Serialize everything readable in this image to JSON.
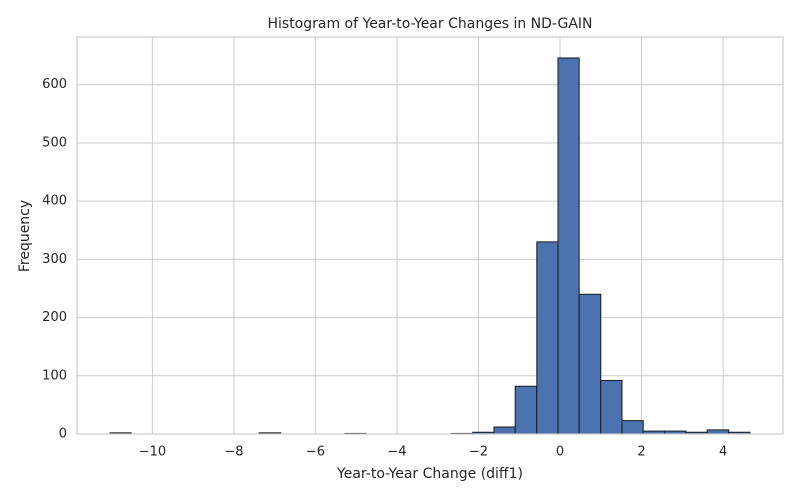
{
  "chart_data": {
    "type": "histogram",
    "title": "Histogram of Year-to-Year Changes in ND-GAIN",
    "x_label": "Year-to-Year Change (diff1)",
    "y_label": "Frequency",
    "bins": [
      -11.04,
      -10.52,
      -9.99,
      -9.47,
      -8.95,
      -8.42,
      -7.9,
      -7.38,
      -6.85,
      -6.33,
      -5.81,
      -5.28,
      -4.76,
      -4.24,
      -3.71,
      -3.19,
      -2.67,
      -2.14,
      -1.62,
      -1.1,
      -0.57,
      -0.05,
      0.47,
      1.0,
      1.52,
      2.04,
      2.57,
      3.09,
      3.61,
      4.14,
      4.66
    ],
    "values": [
      2,
      0,
      0,
      0,
      0,
      0,
      0,
      2,
      0,
      0,
      0,
      1,
      0,
      0,
      0,
      0,
      1,
      3,
      12,
      82,
      330,
      646,
      240,
      92,
      23,
      5,
      5,
      3,
      7,
      3
    ],
    "color": "#4c72b0",
    "edge_color": "#1a1a1a",
    "xlim": [
      -11.85,
      5.47
    ],
    "ylim": [
      0,
      682
    ],
    "xticks": [
      {
        "value": -10,
        "label": "−10"
      },
      {
        "value": -8,
        "label": "−8"
      },
      {
        "value": -6,
        "label": "−6"
      },
      {
        "value": -4,
        "label": "−4"
      },
      {
        "value": -2,
        "label": "−2"
      },
      0,
      2,
      4
    ],
    "yticks": [
      0,
      100,
      200,
      300,
      400,
      500,
      600
    ],
    "grid": true
  }
}
